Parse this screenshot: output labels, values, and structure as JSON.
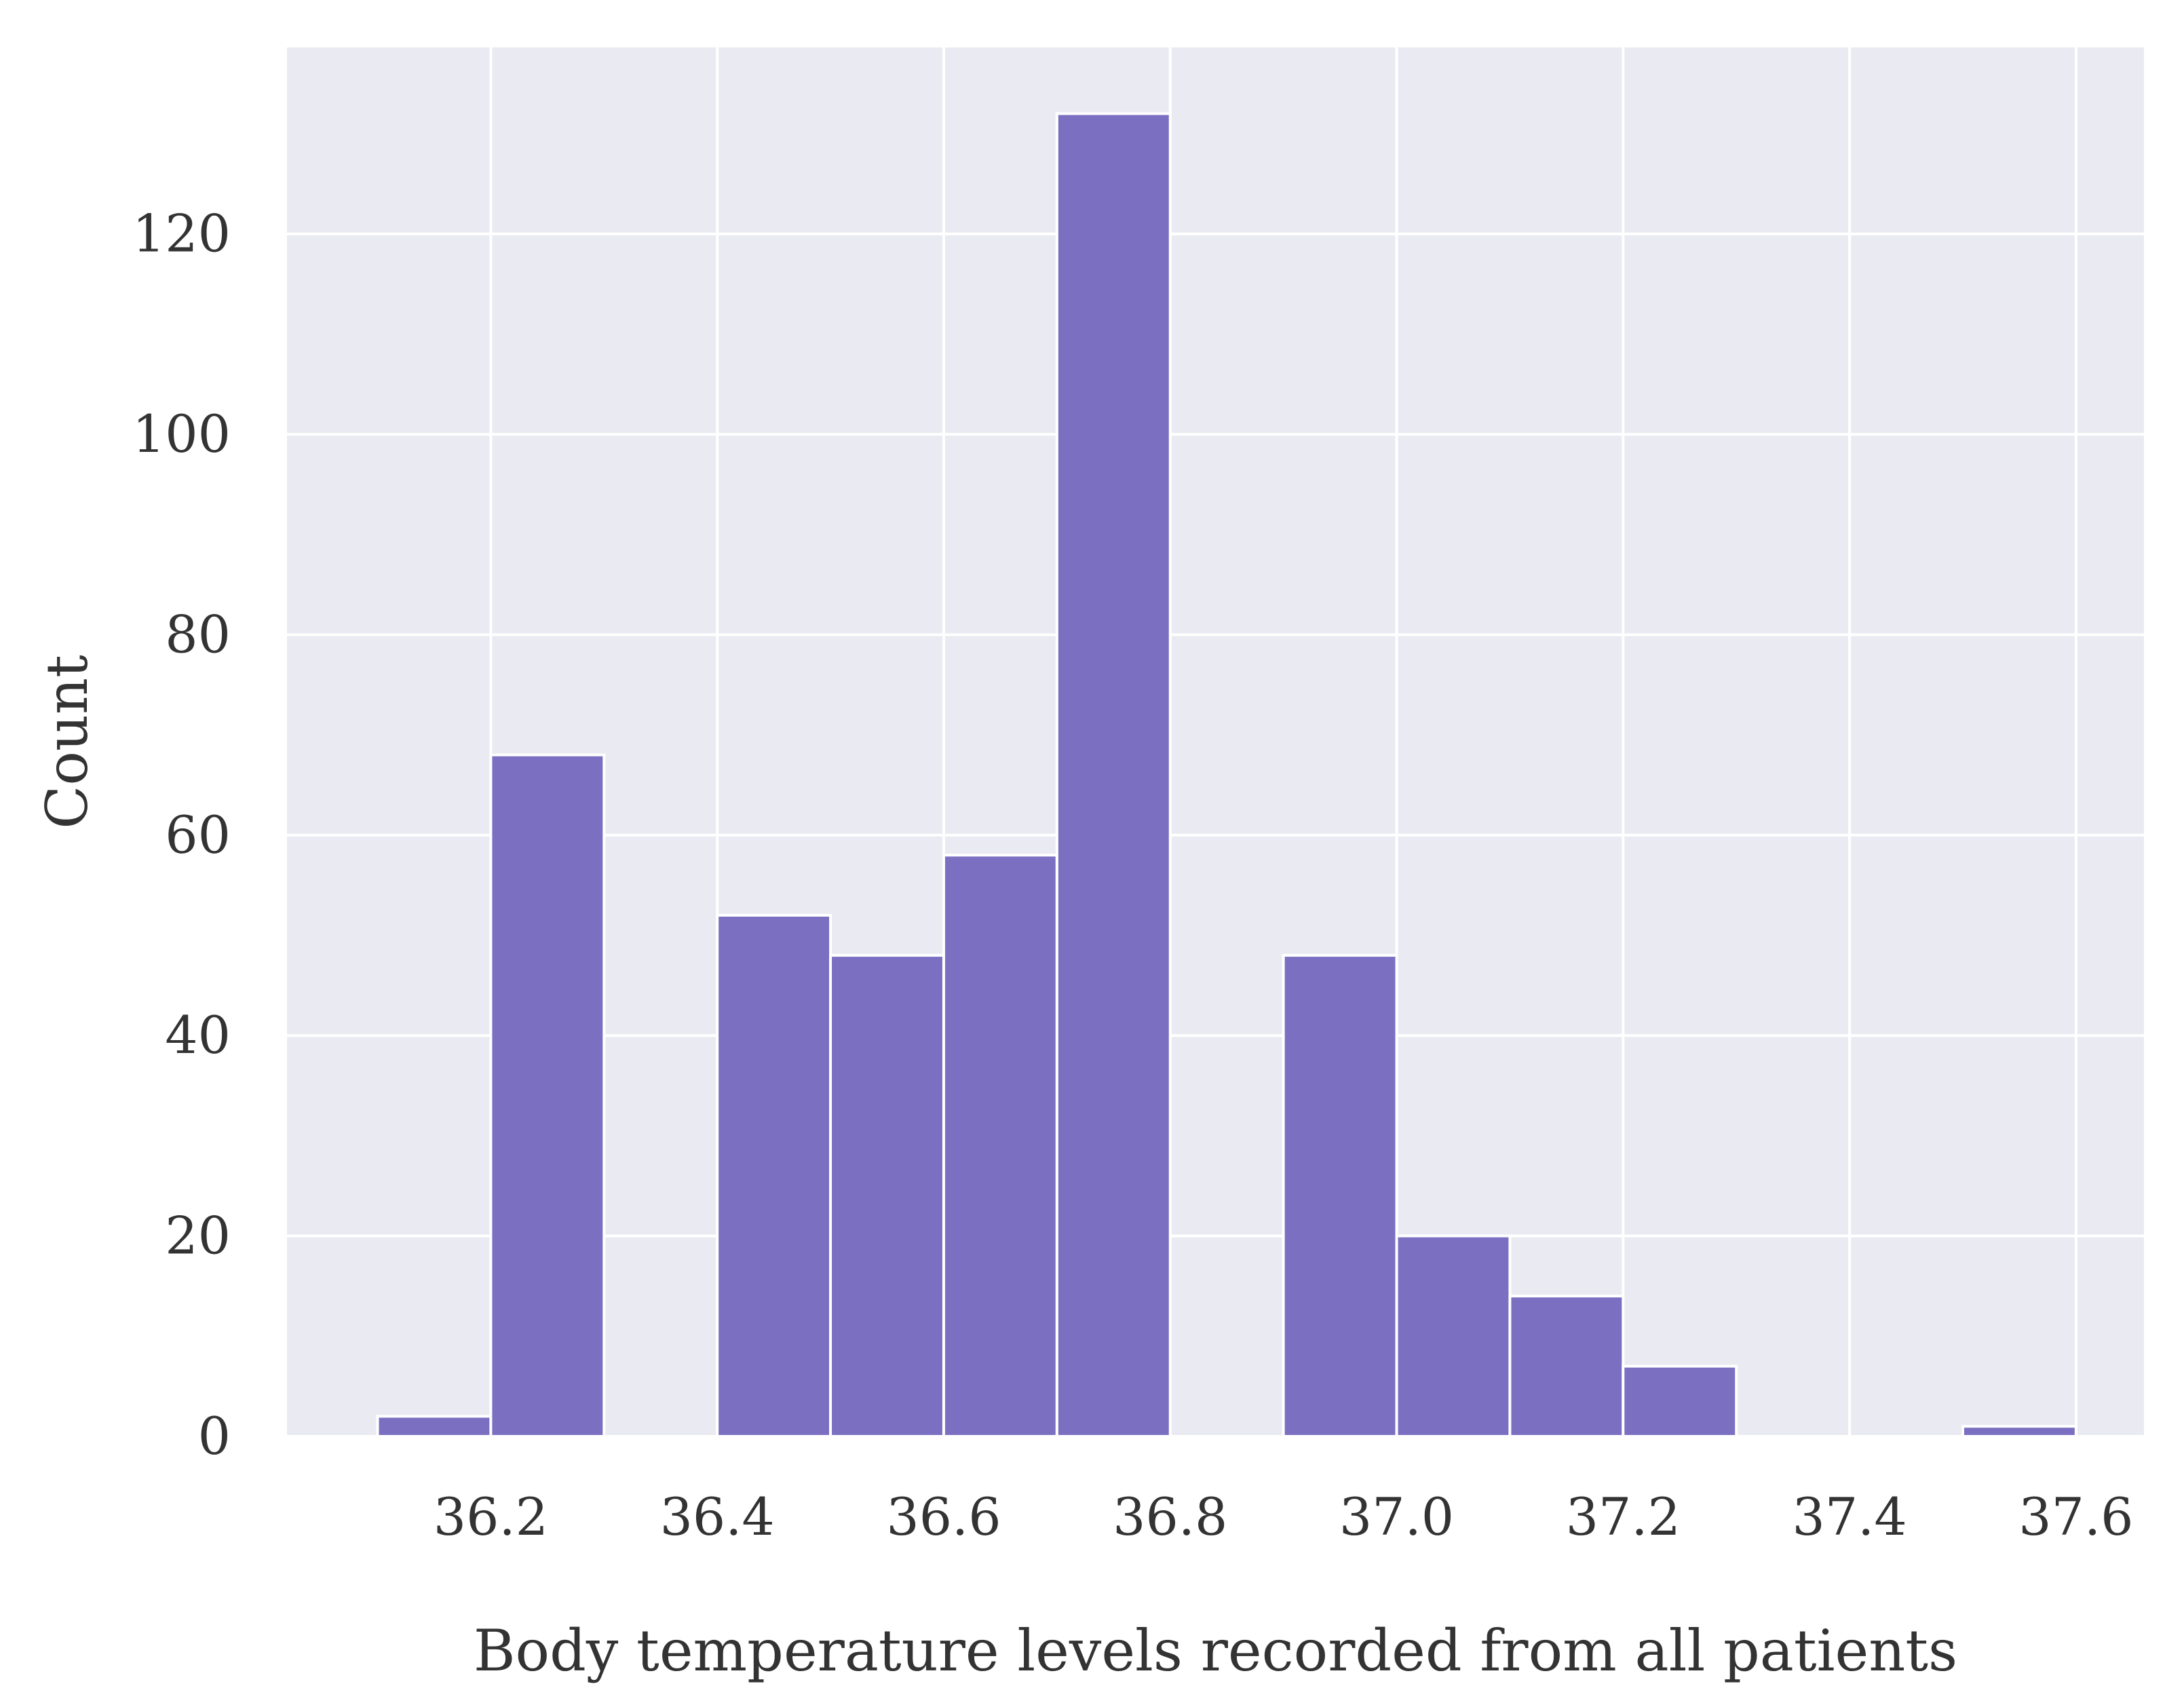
{
  "chart_data": {
    "type": "bar",
    "title": "",
    "xlabel": "Body temperature levels recorded from all patients",
    "ylabel": "Count",
    "xlim": [
      36.02,
      37.66
    ],
    "ylim": [
      0,
      138.6
    ],
    "x_ticks": [
      "36.2",
      "36.4",
      "36.6",
      "36.8",
      "37.0",
      "37.2",
      "37.4",
      "37.6"
    ],
    "y_ticks": [
      "0",
      "20",
      "40",
      "60",
      "80",
      "100",
      "120"
    ],
    "bin_width": 0.1,
    "bins": [
      {
        "start": 36.1,
        "end": 36.2,
        "count": 2
      },
      {
        "start": 36.2,
        "end": 36.3,
        "count": 68
      },
      {
        "start": 36.3,
        "end": 36.4,
        "count": 0
      },
      {
        "start": 36.4,
        "end": 36.5,
        "count": 52
      },
      {
        "start": 36.5,
        "end": 36.6,
        "count": 48
      },
      {
        "start": 36.6,
        "end": 36.7,
        "count": 58
      },
      {
        "start": 36.7,
        "end": 36.8,
        "count": 132
      },
      {
        "start": 36.8,
        "end": 36.9,
        "count": 0
      },
      {
        "start": 36.9,
        "end": 37.0,
        "count": 48
      },
      {
        "start": 37.0,
        "end": 37.1,
        "count": 20
      },
      {
        "start": 37.1,
        "end": 37.2,
        "count": 14
      },
      {
        "start": 37.2,
        "end": 37.3,
        "count": 7
      },
      {
        "start": 37.3,
        "end": 37.4,
        "count": 0
      },
      {
        "start": 37.4,
        "end": 37.5,
        "count": 0
      },
      {
        "start": 37.5,
        "end": 37.6,
        "count": 1
      }
    ],
    "grid": true,
    "legend": "none",
    "colors": {
      "bar_fill": "#7b6fc2",
      "bar_edge": "#ffffff",
      "plot_background": "#eaeaf2",
      "grid": "#ffffff",
      "text": "#333333"
    }
  }
}
